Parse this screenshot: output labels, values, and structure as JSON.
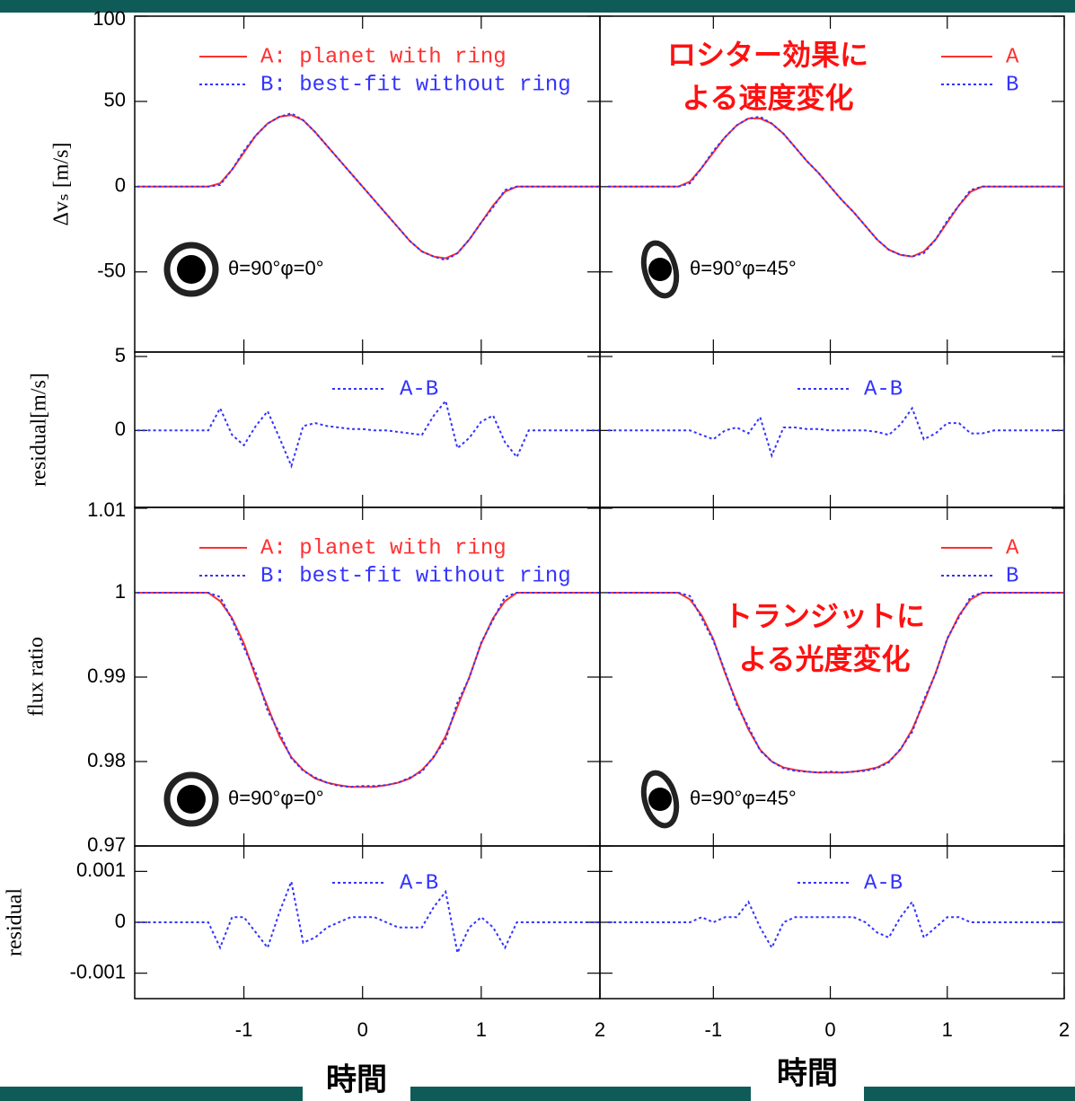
{
  "chart_data": [
    {
      "type": "line",
      "ylabel": "Δvₛ [m/s]",
      "xlim": [
        -1.92,
        2
      ],
      "ylim": [
        -97,
        100
      ],
      "yticks": [
        -50,
        0,
        50,
        100
      ],
      "annotation": "θ=90°φ=0°",
      "x": [
        -1.9,
        -1.5,
        -1.4,
        -1.3,
        -1.2,
        -1.1,
        -1.0,
        -0.9,
        -0.8,
        -0.7,
        -0.6,
        -0.5,
        -0.4,
        -0.3,
        -0.2,
        -0.1,
        0,
        0.1,
        0.2,
        0.3,
        0.4,
        0.5,
        0.6,
        0.7,
        0.8,
        0.9,
        1.0,
        1.1,
        1.2,
        1.3,
        1.4,
        1.5,
        2.0
      ],
      "series": [
        {
          "name": "A: planet with ring",
          "color": "#ff3030",
          "linestyle": "solid",
          "values": [
            0,
            0,
            0,
            0,
            2,
            10,
            20,
            30,
            37,
            41,
            42,
            39,
            32,
            24,
            16,
            8,
            0,
            -8,
            -16,
            -24,
            -32,
            -38,
            -41,
            -42,
            -39,
            -31,
            -21,
            -11,
            -3,
            0,
            0,
            0,
            0
          ]
        },
        {
          "name": "B: best-fit without ring",
          "color": "#3333ff",
          "linestyle": "dotted",
          "values": [
            0,
            0,
            0,
            0,
            1,
            10,
            21,
            30,
            37,
            41,
            43,
            39,
            32,
            24,
            16,
            8,
            0,
            -8,
            -16,
            -24,
            -32,
            -38,
            -41,
            -43,
            -39,
            -31,
            -21,
            -12,
            -2,
            0,
            0,
            0,
            0
          ]
        }
      ]
    },
    {
      "type": "line",
      "ylabel": "residual[m/s]",
      "xlim": [
        -1.92,
        2
      ],
      "ylim": [
        -5.2,
        5.3
      ],
      "yticks": [
        0,
        5
      ],
      "x": [
        -1.9,
        -1.5,
        -1.4,
        -1.3,
        -1.2,
        -1.1,
        -1.0,
        -0.9,
        -0.8,
        -0.7,
        -0.6,
        -0.5,
        -0.4,
        -0.3,
        -0.2,
        -0.1,
        0,
        0.1,
        0.2,
        0.3,
        0.4,
        0.5,
        0.6,
        0.7,
        0.8,
        0.9,
        1.0,
        1.1,
        1.2,
        1.3,
        1.4,
        1.5,
        2.0
      ],
      "series": [
        {
          "name": "A-B",
          "color": "#3333ff",
          "linestyle": "dotted",
          "values": [
            0,
            0,
            0,
            0,
            1.5,
            -0.3,
            -1.0,
            0.3,
            1.3,
            -0.5,
            -2.4,
            0.3,
            0.5,
            0.3,
            0.2,
            0.1,
            0.1,
            0,
            0,
            -0.1,
            -0.2,
            -0.3,
            1.0,
            2.0,
            -1.2,
            -0.5,
            0.6,
            1.0,
            -0.8,
            -1.8,
            0,
            0,
            0
          ]
        }
      ]
    },
    {
      "type": "line",
      "ylabel": "flux ratio",
      "xlim": [
        -1.92,
        2
      ],
      "ylim": [
        0.97,
        1.0101
      ],
      "yticks": [
        0.97,
        0.98,
        0.99,
        1,
        1.01
      ],
      "annotation": "θ=90°φ=0°",
      "x": [
        -1.9,
        -1.5,
        -1.4,
        -1.3,
        -1.2,
        -1.1,
        -1.0,
        -0.9,
        -0.8,
        -0.7,
        -0.6,
        -0.5,
        -0.4,
        -0.3,
        -0.2,
        -0.1,
        0,
        0.1,
        0.2,
        0.3,
        0.4,
        0.5,
        0.6,
        0.7,
        0.8,
        0.9,
        1.0,
        1.1,
        1.2,
        1.3,
        1.4,
        1.5,
        2.0
      ],
      "series": [
        {
          "name": "A: planet with ring",
          "color": "#ff3030",
          "linestyle": "solid",
          "values": [
            1,
            1,
            1,
            1,
            0.999,
            0.997,
            0.994,
            0.99,
            0.9865,
            0.983,
            0.9805,
            0.979,
            0.978,
            0.9775,
            0.9772,
            0.977,
            0.977,
            0.977,
            0.9772,
            0.9775,
            0.978,
            0.979,
            0.9805,
            0.983,
            0.9865,
            0.99,
            0.994,
            0.997,
            0.999,
            1,
            1,
            1,
            1
          ]
        },
        {
          "name": "B: best-fit without ring",
          "color": "#3333ff",
          "linestyle": "dotted",
          "values": [
            1,
            1,
            1,
            1,
            0.9995,
            0.9968,
            0.9935,
            0.9905,
            0.986,
            0.9834,
            0.9804,
            0.9789,
            0.9781,
            0.9775,
            0.9771,
            0.977,
            0.9771,
            0.9771,
            0.9772,
            0.9775,
            0.9781,
            0.9788,
            0.9806,
            0.9826,
            0.987,
            0.9899,
            0.9941,
            0.9968,
            0.9995,
            1,
            1,
            1,
            1
          ]
        }
      ]
    },
    {
      "type": "line",
      "ylabel": "residual",
      "xlabel": "時間",
      "xlim": [
        -1.92,
        2
      ],
      "ylim": [
        -0.0015,
        0.0015
      ],
      "yticks": [
        -0.001,
        0,
        0.001
      ],
      "xticks": [
        -1,
        0,
        1,
        2
      ],
      "x": [
        -1.9,
        -1.5,
        -1.4,
        -1.3,
        -1.2,
        -1.1,
        -1.0,
        -0.9,
        -0.8,
        -0.7,
        -0.6,
        -0.5,
        -0.4,
        -0.3,
        -0.2,
        -0.1,
        0,
        0.1,
        0.2,
        0.3,
        0.4,
        0.5,
        0.6,
        0.7,
        0.8,
        0.9,
        1.0,
        1.1,
        1.2,
        1.3,
        1.4,
        1.5,
        2.0
      ],
      "series": [
        {
          "name": "A-B",
          "color": "#3333ff",
          "linestyle": "dotted",
          "values": [
            0,
            0,
            0,
            0,
            -0.0005,
            0.0001,
            0.0001,
            -0.0002,
            -0.0005,
            0.0002,
            0.0008,
            -0.0004,
            -0.0003,
            -0.0001,
            0,
            0.0001,
            0.0001,
            0.0001,
            0,
            -0.0001,
            -0.0001,
            -0.0001,
            0.0003,
            0.0006,
            -0.0006,
            -0.0001,
            0.0001,
            -0.0001,
            -0.0005,
            0,
            0,
            0,
            0
          ]
        }
      ]
    },
    {
      "type": "line",
      "xlim": [
        -1.97,
        2
      ],
      "ylim": [
        -97,
        100
      ],
      "annotation": "θ=90°φ=45°",
      "note": [
        "ロシター効果に",
        "よる速度変化"
      ],
      "x": [
        -1.9,
        -1.5,
        -1.4,
        -1.3,
        -1.2,
        -1.1,
        -1.0,
        -0.9,
        -0.8,
        -0.7,
        -0.6,
        -0.5,
        -0.4,
        -0.3,
        -0.2,
        -0.1,
        0,
        0.1,
        0.2,
        0.3,
        0.4,
        0.5,
        0.6,
        0.7,
        0.8,
        0.9,
        1.0,
        1.1,
        1.2,
        1.3,
        1.4,
        1.5,
        2.0
      ],
      "series": [
        {
          "name": "A",
          "color": "#ff3030",
          "linestyle": "solid",
          "values": [
            0,
            0,
            0,
            0,
            3,
            11,
            20,
            29,
            36,
            40,
            40,
            37,
            31,
            23,
            15,
            8,
            0,
            -8,
            -15,
            -23,
            -31,
            -37,
            -40,
            -41,
            -38,
            -31,
            -21,
            -11,
            -3,
            0,
            0,
            0,
            0
          ]
        },
        {
          "name": "B",
          "color": "#3333ff",
          "linestyle": "dotted",
          "values": [
            0,
            0,
            0,
            0,
            2,
            11,
            21,
            29,
            36,
            40,
            41,
            37,
            31,
            23,
            15,
            8,
            0,
            -8,
            -15,
            -23,
            -31,
            -37,
            -40,
            -41,
            -39,
            -31,
            -20,
            -11,
            -2,
            0,
            0,
            0,
            0
          ]
        }
      ]
    },
    {
      "type": "line",
      "xlim": [
        -1.97,
        2
      ],
      "ylim": [
        -5.2,
        5.3
      ],
      "x": [
        -1.9,
        -1.5,
        -1.4,
        -1.3,
        -1.2,
        -1.1,
        -1.0,
        -0.9,
        -0.8,
        -0.7,
        -0.6,
        -0.5,
        -0.4,
        -0.3,
        -0.2,
        -0.1,
        0,
        0.1,
        0.2,
        0.3,
        0.4,
        0.5,
        0.6,
        0.7,
        0.8,
        0.9,
        1.0,
        1.1,
        1.2,
        1.3,
        1.4,
        1.5,
        2.0
      ],
      "series": [
        {
          "name": "A-B",
          "color": "#3333ff",
          "linestyle": "dotted",
          "values": [
            0,
            0,
            0,
            0,
            0,
            -0.3,
            -0.6,
            0,
            0.2,
            -0.2,
            0.9,
            -1.7,
            0.2,
            0.2,
            0.1,
            0.1,
            0,
            0,
            0,
            0,
            -0.1,
            -0.3,
            0.4,
            1.5,
            -0.6,
            -0.2,
            0.5,
            0.5,
            -0.2,
            -0.2,
            0,
            0,
            0
          ]
        }
      ]
    },
    {
      "type": "line",
      "xlim": [
        -1.97,
        2
      ],
      "ylim": [
        0.97,
        1.0101
      ],
      "annotation": "θ=90°φ=45°",
      "note": [
        "トランジットに",
        "よる光度変化"
      ],
      "x": [
        -1.9,
        -1.5,
        -1.4,
        -1.3,
        -1.2,
        -1.1,
        -1.0,
        -0.9,
        -0.8,
        -0.7,
        -0.6,
        -0.5,
        -0.4,
        -0.3,
        -0.2,
        -0.1,
        0,
        0.1,
        0.2,
        0.3,
        0.4,
        0.5,
        0.6,
        0.7,
        0.8,
        0.9,
        1.0,
        1.1,
        1.2,
        1.3,
        1.4,
        1.5,
        2.0
      ],
      "series": [
        {
          "name": "A",
          "color": "#ff3030",
          "linestyle": "solid",
          "values": [
            1,
            1,
            1,
            1,
            0.9992,
            0.9973,
            0.9945,
            0.9905,
            0.987,
            0.9838,
            0.9814,
            0.98,
            0.9793,
            0.979,
            0.9788,
            0.9787,
            0.9787,
            0.9787,
            0.9788,
            0.979,
            0.9793,
            0.98,
            0.9814,
            0.9838,
            0.987,
            0.9905,
            0.9945,
            0.9973,
            0.9992,
            1,
            1,
            1,
            1
          ]
        },
        {
          "name": "B",
          "color": "#3333ff",
          "linestyle": "dotted",
          "values": [
            1,
            1,
            1,
            1,
            0.9996,
            0.997,
            0.9943,
            0.9907,
            0.9867,
            0.9841,
            0.9813,
            0.98,
            0.9792,
            0.9789,
            0.9788,
            0.9787,
            0.9788,
            0.9787,
            0.9788,
            0.9789,
            0.9792,
            0.9799,
            0.9815,
            0.9835,
            0.9873,
            0.9904,
            0.9946,
            0.9971,
            0.9995,
            1,
            1,
            1,
            1
          ]
        }
      ]
    },
    {
      "type": "line",
      "xlabel": "時間",
      "xlim": [
        -1.97,
        2
      ],
      "ylim": [
        -0.0015,
        0.0015
      ],
      "xticks": [
        -1,
        0,
        1,
        2
      ],
      "x": [
        -1.9,
        -1.5,
        -1.4,
        -1.3,
        -1.2,
        -1.1,
        -1.0,
        -0.9,
        -0.8,
        -0.7,
        -0.6,
        -0.5,
        -0.4,
        -0.3,
        -0.2,
        -0.1,
        0,
        0.1,
        0.2,
        0.3,
        0.4,
        0.5,
        0.6,
        0.7,
        0.8,
        0.9,
        1.0,
        1.1,
        1.2,
        1.3,
        1.4,
        1.5,
        2.0
      ],
      "series": [
        {
          "name": "A-B",
          "color": "#3333ff",
          "linestyle": "dotted",
          "values": [
            0,
            0,
            0,
            0,
            0,
            0.0001,
            0,
            0.0001,
            0.0001,
            0.0004,
            -0.0001,
            -0.0005,
            0,
            0.0001,
            0.0001,
            0.0001,
            0.0001,
            0.0001,
            0.0001,
            0,
            -0.0002,
            -0.0003,
            0.0001,
            0.0004,
            -0.0003,
            -0.0001,
            0.0001,
            0.0001,
            0,
            0,
            0,
            0,
            0
          ]
        }
      ]
    }
  ]
}
